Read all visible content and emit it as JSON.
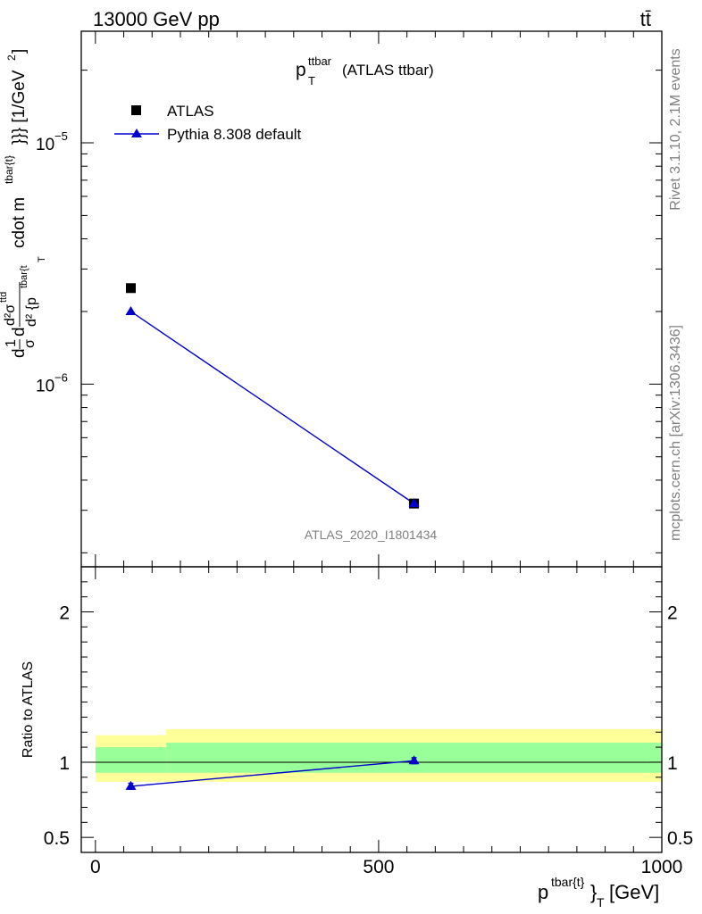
{
  "header": {
    "energy_label": "13000 GeV pp",
    "process_label": "tt̄"
  },
  "side_labels": {
    "rivet": "Rivet 3.1.10,  2.1M events",
    "mcplots": "mcplots.cern.ch [arXiv:1306.3436]"
  },
  "watermark": "ATLAS_2020_I1801434",
  "chart_data": [
    {
      "type": "scatter",
      "title_main": "p",
      "title_sup": "ttbar",
      "title_sub": "T",
      "title_suffix": "(ATLAS ttbar)",
      "ylabel": "d1dσd d²σ^ttd / d² {p^tbar{t} T cdot m^tbar{t}}}} [1/GeV²]",
      "ylabel_parts": {
        "frac1_num": "1",
        "frac1_den": "σ",
        "frac2_num": "d²σ",
        "frac2_num_sup": "ttd",
        "frac2_den": "d² {p",
        "frac2_den_sup": "tbar{t",
        "sub_T": "T",
        "cdot": "cdot m",
        "m_sup": "tbar{t}",
        "tail": "}}} [1/GeV",
        "tail_sup": "2",
        "tail_end": "]"
      },
      "y_scale": "log",
      "xlim": [
        -25,
        1000
      ],
      "ylim": [
        1.75e-07,
        2.9e-05
      ],
      "yticks": [
        {
          "value": 1e-06,
          "base": "10",
          "exp": "−6"
        },
        {
          "value": 1e-05,
          "base": "10",
          "exp": "−5"
        }
      ],
      "legend_position": "top-left",
      "series": [
        {
          "name": "ATLAS",
          "marker": "square",
          "color": "#000000",
          "x": [
            62.5,
            562.5
          ],
          "y": [
            2.5e-06,
            3.2e-07
          ]
        },
        {
          "name": "Pythia 8.308 default",
          "marker": "triangle",
          "color": "#0000cc",
          "x": [
            62.5,
            562.5
          ],
          "y": [
            2e-06,
            3.2e-07
          ]
        }
      ]
    },
    {
      "type": "line",
      "ylabel": "Ratio to ATLAS",
      "xlabel_main": "p",
      "xlabel_sup": "tbar{t}",
      "xlabel_close": "}",
      "xlabel_sub": "T",
      "xlabel_unit": "[GeV]",
      "xlim": [
        -25,
        1000
      ],
      "ylim": [
        0.4,
        2.3
      ],
      "xticks": [
        0,
        500,
        1000
      ],
      "yticks": [
        0.5,
        1,
        2
      ],
      "reference_line": 1,
      "bands": [
        {
          "x": [
            0,
            125
          ],
          "yellow": [
            0.87,
            1.18
          ],
          "green": [
            0.93,
            1.1
          ]
        },
        {
          "x": [
            125,
            1000
          ],
          "yellow": [
            0.87,
            1.22
          ],
          "green": [
            0.93,
            1.13
          ]
        }
      ],
      "series": [
        {
          "name": "Pythia 8.308 default",
          "color": "#0000cc",
          "x": [
            62.5,
            562.5
          ],
          "y": [
            0.84,
            1.01
          ],
          "err": [
            0.02,
            0.02
          ]
        }
      ],
      "colors": {
        "yellow": "#ffff99",
        "green": "#99ff99",
        "line": "#0000cc"
      }
    }
  ]
}
